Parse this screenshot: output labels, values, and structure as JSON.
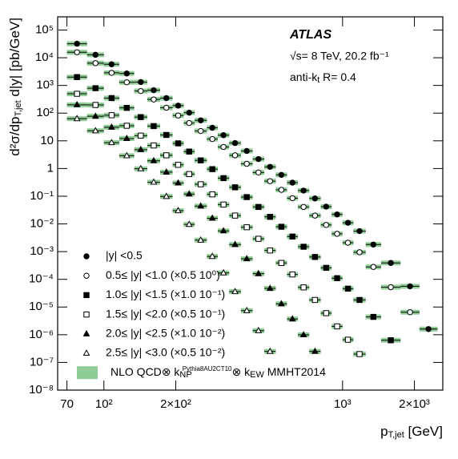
{
  "chart_data": {
    "type": "scatter",
    "x_label": {
      "main": "p",
      "sub": "T,jet",
      "rest": " [GeV]"
    },
    "y_label": {
      "main": "d²σ/dp",
      "sub": "T,jet",
      "rest": " d|y| [pb/GeV]"
    },
    "annotations": {
      "experiment": "ATLAS",
      "energy": "√s= 8 TeV, 20.2 fb⁻¹",
      "algorithm": {
        "main": "anti-k",
        "sub": "t",
        "rest": " R= 0.4"
      }
    },
    "log_x": true,
    "log_y": true,
    "xlim": [
      64,
      2630
    ],
    "ylim": [
      1e-08,
      300000
    ],
    "xticks": [
      70,
      {
        "value": 100,
        "label": "10²"
      },
      {
        "value": 200,
        "label": "2×10²"
      },
      {
        "value": 1000,
        "label": "10³"
      },
      {
        "value": 2000,
        "label": "2×10³"
      }
    ],
    "yticks": [
      {
        "value": 1e-08,
        "label": "10⁻⁸"
      },
      {
        "value": 1e-07,
        "label": "10⁻⁷"
      },
      {
        "value": 1e-06,
        "label": "10⁻⁶"
      },
      {
        "value": 1e-05,
        "label": "10⁻⁵"
      },
      {
        "value": 0.0001,
        "label": "10⁻⁴"
      },
      {
        "value": 0.001,
        "label": "10⁻³"
      },
      {
        "value": 0.01,
        "label": "10⁻²"
      },
      {
        "value": 0.1,
        "label": "10⁻¹"
      },
      1,
      10,
      {
        "value": 100,
        "label": "10²"
      },
      {
        "value": 1000,
        "label": "10³"
      },
      {
        "value": 10000,
        "label": "10⁴"
      },
      {
        "value": 100000,
        "label": "10⁵"
      }
    ],
    "legend": "lower left",
    "theory": {
      "color": "#90cc96",
      "text": "NLO QCD⊗ k",
      "sub": "NP",
      "sup": "Pythia8AU2CT10",
      "text2": "⊗ k",
      "sub2": "EW",
      "text3": " MMHT2014"
    },
    "bins": [
      70,
      85,
      100,
      116,
      134,
      152,
      172,
      194,
      216,
      240,
      270,
      300,
      335,
      375,
      420,
      470,
      525,
      585,
      650,
      725,
      810,
      900,
      1000,
      1110,
      1250,
      1450,
      1750,
      2100,
      2500
    ],
    "series": [
      {
        "name": "|y| <0.5",
        "marker": "circle",
        "filled": true,
        "color": "#000000",
        "values": [
          32000,
          12800,
          5800,
          2700,
          1320,
          673,
          348,
          187,
          104,
          55,
          29.6,
          16,
          8.3,
          4.3,
          2.2,
          1.15,
          0.59,
          0.31,
          0.16,
          0.083,
          0.042,
          0.022,
          0.011,
          0.0055,
          0.0018,
          0.00039,
          5.6e-05,
          1.6e-06
        ]
      },
      {
        "name": "0.5≤ |y| <1.0 (×0.5 10⁰)",
        "marker": "circle",
        "filled": false,
        "color": "#000000",
        "values": [
          15800,
          6370,
          2850,
          1300,
          628,
          312,
          157,
          82,
          44,
          22.6,
          11.6,
          6.0,
          3.0,
          1.48,
          0.72,
          0.35,
          0.17,
          0.085,
          0.041,
          0.02,
          0.0092,
          0.0044,
          0.0021,
          0.00095,
          0.00028,
          5.2e-05,
          6.5e-06,
          null
        ]
      },
      {
        "name": "1.0≤ |y| <1.5 (×1.0 10⁻¹)",
        "marker": "square",
        "filled": true,
        "color": "#000000",
        "values": [
          2000,
          794,
          349,
          155,
          72,
          34,
          16.3,
          8.1,
          4.1,
          1.97,
          0.95,
          0.45,
          0.21,
          0.093,
          0.041,
          0.018,
          0.0079,
          0.0035,
          0.0015,
          0.00064,
          0.00026,
          0.00011,
          4.6e-05,
          1.8e-05,
          4.4e-06,
          6.3e-07,
          null,
          null
        ]
      },
      {
        "name": "1.5≤ |y| <2.0 (×0.5 10⁻¹)",
        "marker": "square",
        "filled": false,
        "color": "#000000",
        "values": [
          500,
          197,
          84,
          35,
          15.4,
          6.8,
          3.0,
          1.36,
          0.63,
          0.27,
          0.117,
          0.05,
          0.02,
          0.0076,
          0.0029,
          0.0011,
          0.00039,
          0.00015,
          5.1e-05,
          1.8e-05,
          6e-06,
          2e-06,
          6.6e-07,
          2e-07,
          null,
          null,
          null,
          null
        ]
      },
      {
        "name": "2.0≤ |y| <2.5 (×1.0 10⁻²)",
        "marker": "triangle",
        "filled": true,
        "color": "#000000",
        "values": [
          200,
          77,
          31,
          12.1,
          4.8,
          1.9,
          0.74,
          0.3,
          0.12,
          0.044,
          0.016,
          0.0056,
          0.0018,
          0.00055,
          0.00016,
          4.7e-05,
          1.3e-05,
          3.7e-06,
          9.9e-07,
          2.5e-07,
          null,
          null,
          null,
          null,
          null,
          null,
          null,
          null
        ]
      },
      {
        "name": "2.5≤ |y| <3.0 (×0.5 10⁻²)",
        "marker": "triangle",
        "filled": false,
        "color": "#000000",
        "values": [
          63,
          23,
          8.6,
          2.9,
          0.98,
          0.32,
          0.098,
          0.03,
          0.0096,
          0.0026,
          0.00067,
          0.00017,
          3.6e-05,
          7.4e-06,
          1.4e-06,
          2.5e-07,
          null,
          null,
          null,
          null,
          null,
          null,
          null,
          null,
          null,
          null,
          null,
          null
        ]
      }
    ]
  }
}
